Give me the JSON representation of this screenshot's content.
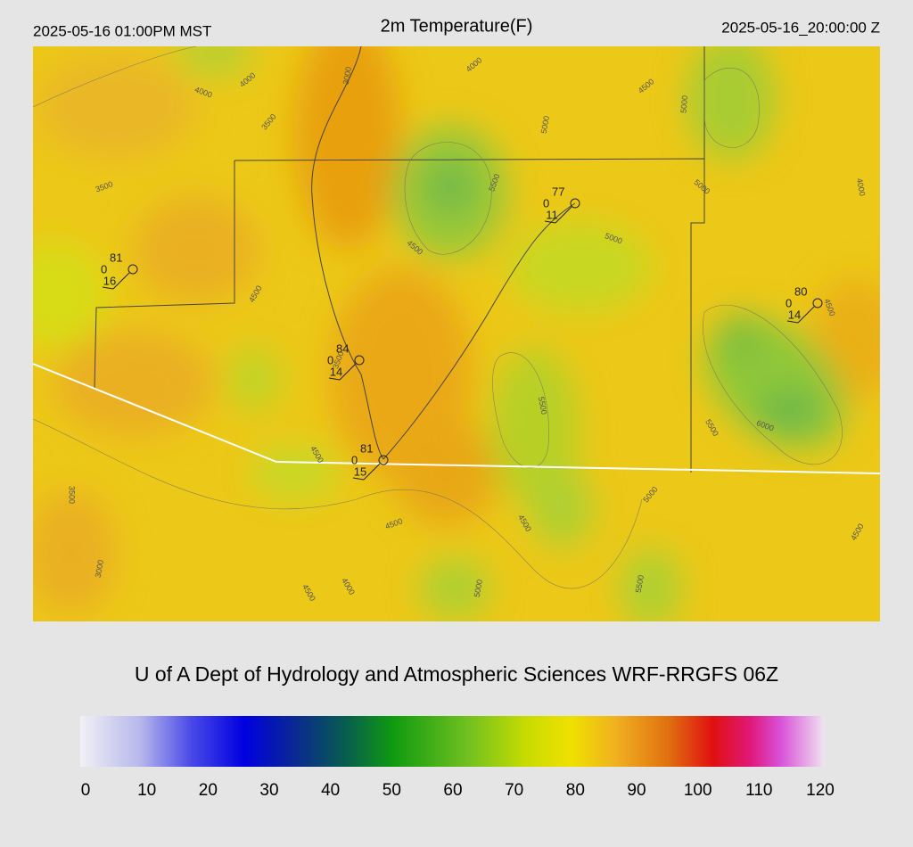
{
  "header": {
    "left": "2025-05-16 01:00PM MST",
    "title": "2m Temperature(F)",
    "right": "2025-05-16_20:00:00 Z"
  },
  "stations": [
    {
      "temperature": 81,
      "left": 0,
      "bottom": 16
    },
    {
      "temperature": 77,
      "left": 0,
      "bottom": 11
    },
    {
      "temperature": 80,
      "left": 0,
      "bottom": 14
    },
    {
      "temperature": 84,
      "left": 0,
      "bottom": 14
    },
    {
      "temperature": 81,
      "left": 0,
      "bottom": 15
    }
  ],
  "contour_labels": [
    4000,
    4000,
    3000,
    3500,
    4000,
    4500,
    5000,
    5000,
    3500,
    5500,
    5000,
    4000,
    4500,
    5000,
    4500,
    4500,
    3500,
    5500,
    6000,
    5500,
    4500,
    3500,
    5000,
    4500,
    4500,
    4500,
    3000,
    4000,
    4500,
    5000,
    5500
  ],
  "footer": "U of A Dept of Hydrology and Atmospheric Sciences WRF-RRGFS 06Z",
  "colorbar": {
    "ticks": [
      0,
      10,
      20,
      30,
      40,
      50,
      60,
      70,
      80,
      90,
      100,
      110,
      120
    ]
  }
}
